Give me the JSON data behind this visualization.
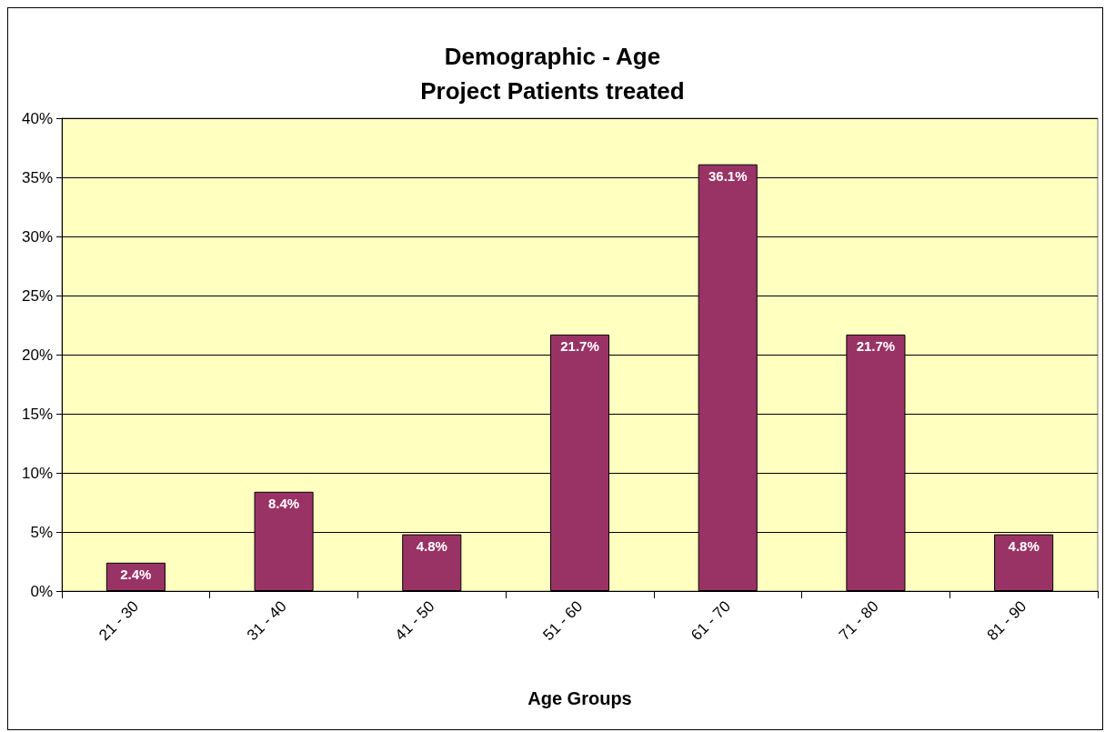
{
  "chart_data": {
    "type": "bar",
    "title": "Demographic - Age\nProject Patients treated",
    "xlabel": "Age Groups",
    "categories": [
      "21 - 30",
      "31 - 40",
      "41 - 50",
      "51 - 60",
      "61 - 70",
      "71 - 80",
      "81 - 90"
    ],
    "values": [
      2.4,
      8.4,
      4.8,
      21.7,
      36.1,
      21.7,
      4.8
    ],
    "value_labels": [
      "2.4%",
      "8.4%",
      "4.8%",
      "21.7%",
      "36.1%",
      "21.7%",
      "4.8%"
    ],
    "color": "#993366",
    "ylim": [
      0,
      40
    ],
    "yticks": [
      {
        "value": 0,
        "label": "0%"
      },
      {
        "value": 5,
        "label": "5%"
      },
      {
        "value": 10,
        "label": "10%"
      },
      {
        "value": 15,
        "label": "15%"
      },
      {
        "value": 20,
        "label": "20%"
      },
      {
        "value": 25,
        "label": "25%"
      },
      {
        "value": 30,
        "label": "30%"
      },
      {
        "value": 35,
        "label": "35%"
      },
      {
        "value": 40,
        "label": "40%"
      }
    ],
    "grid": "y"
  }
}
